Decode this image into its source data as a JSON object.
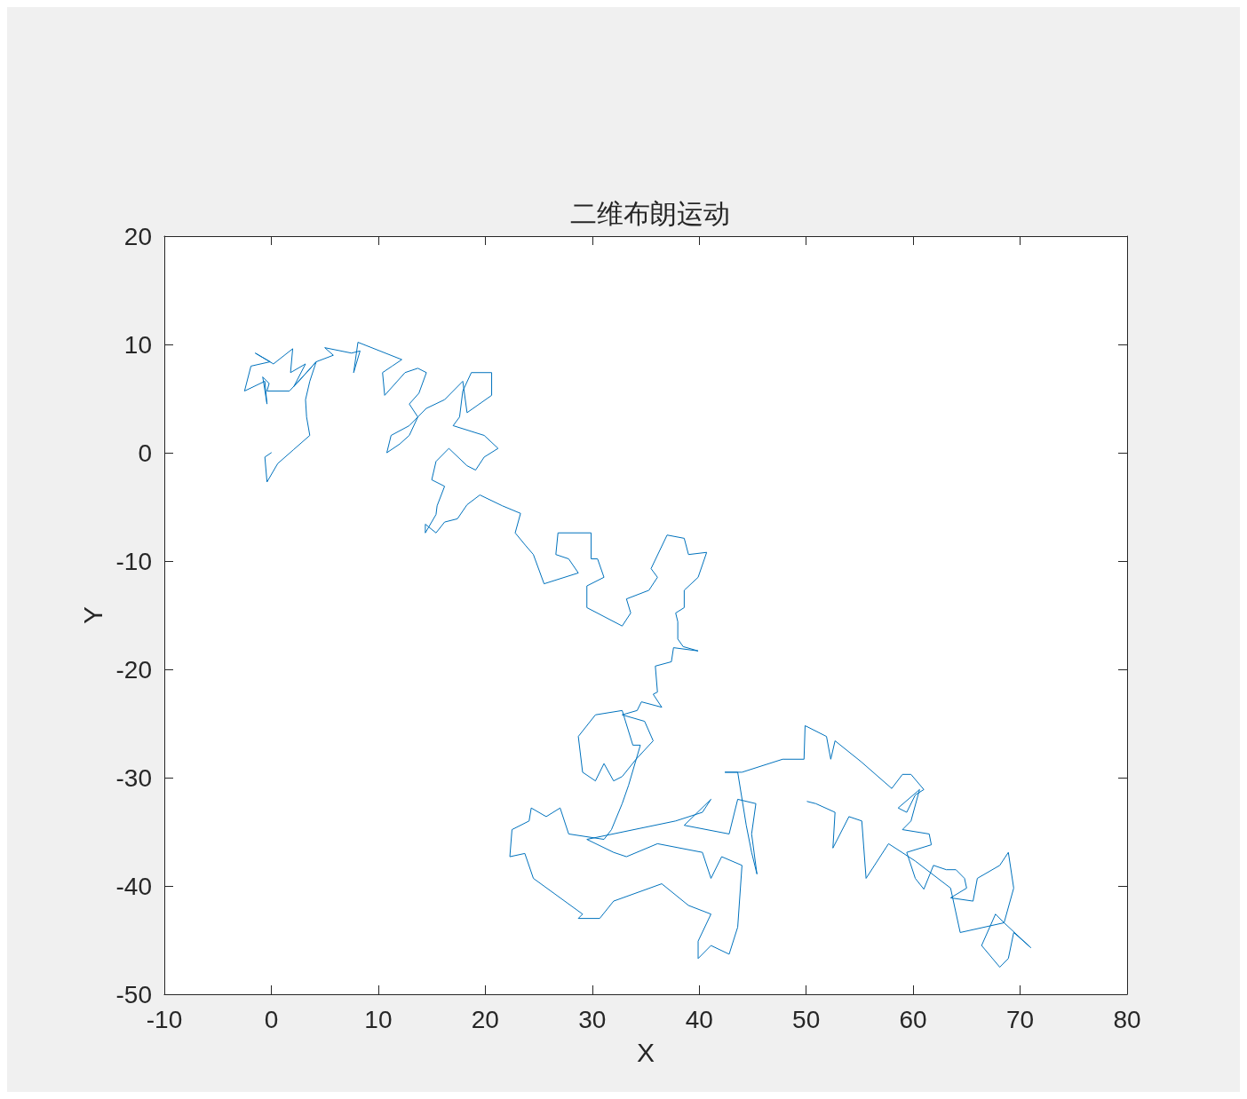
{
  "chart_data": {
    "type": "line",
    "title": "二维布朗运动",
    "xlabel": "X",
    "ylabel": "Y",
    "xlim": [
      -10,
      80
    ],
    "xticks": [
      -10,
      0,
      10,
      20,
      30,
      40,
      50,
      60,
      70,
      80
    ],
    "ylim": [
      -50,
      20
    ],
    "yticks": [
      -50,
      -40,
      -30,
      -20,
      -10,
      0,
      10,
      20
    ],
    "grid": false,
    "marker": "none",
    "line_style": "solid",
    "series": [
      {
        "color": "#0072bd",
        "x": [
          0,
          -0.6,
          -0.4,
          0.6,
          2.1,
          3.6,
          3.3,
          3.2,
          3.6,
          4.2,
          3.3,
          1.7,
          -0.4,
          -0.2,
          -0.8,
          -0.4,
          -0.6,
          -2.5,
          -1.9,
          -0.1,
          -1.5,
          0.2,
          2.0,
          1.8,
          3.2,
          2.1,
          4.2,
          5.8,
          5.0,
          7.5,
          8.3,
          7.7,
          8.1,
          12.2,
          11.3,
          10.4,
          10.6,
          12.5,
          13.7,
          14.5,
          13.8,
          12.9,
          13.7,
          12.9,
          12.0,
          10.8,
          11.2,
          12.9,
          14.5,
          16.2,
          17.9,
          18.3,
          20.6,
          20.6,
          18.7,
          17.9,
          17.6,
          17.0,
          19.9,
          21.2,
          19.9,
          19.1,
          18.3,
          16.6,
          15.4,
          15.0,
          16.2,
          15.5,
          15.4,
          14.4,
          14.4,
          15.4,
          16.2,
          17.4,
          18.3,
          19.5,
          21.6,
          23.3,
          22.8,
          23.8,
          24.5,
          25.5,
          28.7,
          27.8,
          26.6,
          26.8,
          29.9,
          29.9,
          30.5,
          31.1,
          29.5,
          29.5,
          32.8,
          33.6,
          33.2,
          35.3,
          36.1,
          35.5,
          37.0,
          38.6,
          39.0,
          40.7,
          39.9,
          38.6,
          38.6,
          37.8,
          38.0,
          38.0,
          38.5,
          39.9,
          37.6,
          37.4,
          35.9,
          36.1,
          35.7,
          36.5,
          34.6,
          34.2,
          32.8,
          34.9,
          35.7,
          34.1,
          32.8,
          32.0,
          31.1,
          30.3,
          29.1,
          28.7,
          30.3,
          32.8,
          33.8,
          34.5,
          33.4,
          32.8,
          31.8,
          31.1,
          27.8,
          27.0,
          25.7,
          24.3,
          24.1,
          22.5,
          22.3,
          23.7,
          24.5,
          29.1,
          28.7,
          30.7,
          32.0,
          36.5,
          39.0,
          41.1,
          39.9,
          39.9,
          41.1,
          42.8,
          43.6,
          44.0,
          42.1,
          41.1,
          40.3,
          36.1,
          33.2,
          32.0,
          29.5,
          37.8,
          40.3,
          41.1,
          38.6,
          42.8,
          43.6,
          45.3,
          44.9,
          45.4,
          44.9,
          44.4,
          43.6,
          42.4,
          44.0,
          47.8,
          49.8,
          49.9,
          51.9,
          52.3,
          52.7,
          55.1,
          58.0,
          59.0,
          59.8,
          61.0,
          60.2,
          59.4,
          58.6,
          60.6,
          59.8,
          59.0,
          61.5,
          61.7,
          59.4,
          60.2,
          61.0,
          61.9,
          63.1,
          64.0,
          64.8,
          65.0,
          63.5,
          65.6,
          66.0,
          68.1,
          68.9,
          69.4,
          68.5,
          67.7,
          66.4,
          68.1,
          68.9,
          69.4,
          71.0,
          68.5,
          64.4,
          63.5,
          60.2,
          57.7,
          55.6,
          55.2,
          54.0,
          52.5,
          52.7,
          50.9,
          50.1
        ],
        "values": [
          0,
          -0.4,
          -2.7,
          -1.0,
          0.3,
          1.6,
          3.3,
          4.9,
          6.6,
          8.4,
          7.4,
          5.7,
          5.7,
          6.4,
          7.0,
          4.5,
          6.6,
          5.7,
          8.0,
          8.4,
          9.2,
          8.2,
          9.6,
          7.4,
          8.2,
          6.1,
          8.4,
          9.0,
          9.7,
          9.2,
          9.4,
          7.4,
          10.2,
          8.6,
          8.0,
          7.4,
          5.3,
          7.4,
          7.8,
          7.4,
          5.5,
          4.5,
          3.3,
          1.6,
          0.8,
          0,
          1.6,
          2.5,
          4.1,
          4.9,
          6.6,
          3.7,
          5.3,
          7.4,
          7.4,
          5.7,
          3.3,
          2.5,
          1.6,
          0.4,
          -0.4,
          -1.6,
          -1.2,
          0.4,
          -0.8,
          -2.5,
          -3.1,
          -4.9,
          -5.7,
          -7.4,
          -6.6,
          -7.4,
          -6.4,
          -6.1,
          -4.8,
          -3.9,
          -4.9,
          -5.6,
          -7.4,
          -8.6,
          -9.4,
          -12.1,
          -11.1,
          -9.8,
          -9.4,
          -7.4,
          -7.4,
          -9.8,
          -9.8,
          -11.5,
          -12.3,
          -14.3,
          -16.0,
          -14.8,
          -13.5,
          -12.7,
          -11.5,
          -10.7,
          -7.6,
          -7.9,
          -9.4,
          -9.2,
          -11.5,
          -12.7,
          -14.3,
          -14.8,
          -15.6,
          -17.2,
          -17.9,
          -18.3,
          -18.0,
          -19.3,
          -19.7,
          -22.1,
          -22.3,
          -23.5,
          -23.0,
          -23.8,
          -24.2,
          -24.8,
          -26.6,
          -28.3,
          -29.9,
          -30.3,
          -28.7,
          -30.3,
          -29.5,
          -26.2,
          -24.2,
          -23.8,
          -27.0,
          -27.0,
          -30.7,
          -32.4,
          -34.8,
          -35.7,
          -35.2,
          -32.8,
          -33.6,
          -32.8,
          -34.0,
          -34.8,
          -37.3,
          -37.0,
          -39.3,
          -42.6,
          -43.0,
          -43.0,
          -41.4,
          -39.8,
          -41.8,
          -42.6,
          -45.1,
          -46.7,
          -45.5,
          -46.3,
          -43.8,
          -38.1,
          -37.3,
          -39.3,
          -36.9,
          -36.1,
          -37.3,
          -36.9,
          -35.7,
          -34.0,
          -33.2,
          -32.0,
          -34.4,
          -35.2,
          -32.0,
          -32.4,
          -35.2,
          -38.9,
          -36.9,
          -34.4,
          -29.5,
          -29.5,
          -29.5,
          -28.3,
          -28.3,
          -25.2,
          -26.2,
          -28.3,
          -26.6,
          -28.5,
          -31.0,
          -29.7,
          -29.7,
          -31.1,
          -31.6,
          -33.2,
          -32.8,
          -31.1,
          -34.0,
          -34.8,
          -35.2,
          -36.2,
          -36.9,
          -39.3,
          -40.3,
          -38.1,
          -38.5,
          -38.5,
          -39.3,
          -40.2,
          -41.1,
          -41.4,
          -39.3,
          -38.1,
          -36.9,
          -40.2,
          -43.4,
          -42.6,
          -45.5,
          -47.5,
          -46.7,
          -44.3,
          -45.7,
          -43.4,
          -44.3,
          -40.2,
          -37.7,
          -36.1,
          -39.3,
          -34.0,
          -33.6,
          -36.5,
          -33.2,
          -32.4,
          -32.2
        ]
      }
    ]
  }
}
